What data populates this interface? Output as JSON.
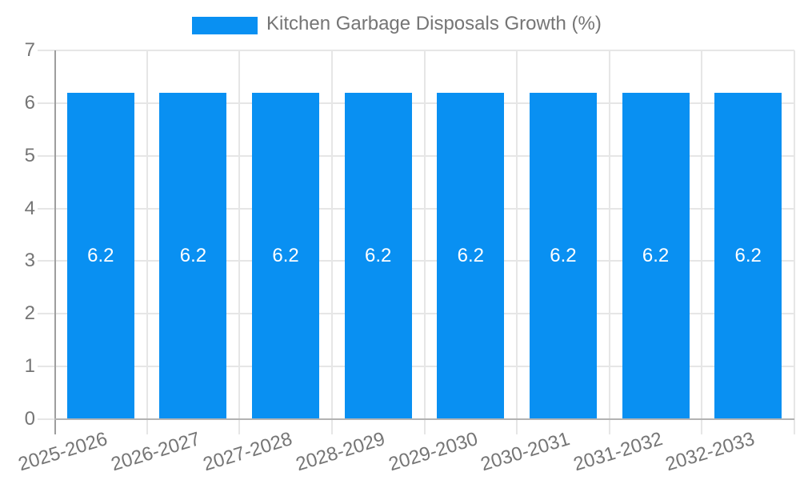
{
  "chart_data": {
    "type": "bar",
    "title": "Kitchen Garbage Disposals Growth (%)",
    "categories": [
      "2025-2026",
      "2026-2027",
      "2027-2028",
      "2028-2029",
      "2029-2030",
      "2030-2031",
      "2031-2032",
      "2032-2033"
    ],
    "values": [
      6.2,
      6.2,
      6.2,
      6.2,
      6.2,
      6.2,
      6.2,
      6.2
    ],
    "bar_labels": [
      "6.2",
      "6.2",
      "6.2",
      "6.2",
      "6.2",
      "6.2",
      "6.2",
      "6.2"
    ],
    "xlabel": "",
    "ylabel": "",
    "ylim": [
      0,
      7
    ],
    "yticks": [
      0,
      1,
      2,
      3,
      4,
      5,
      6,
      7
    ],
    "grid": true,
    "legend_position": "top",
    "colors": {
      "bar": "#0990f2",
      "bar_label": "#ffffff",
      "axis_text": "#757575",
      "gridline": "#e6e6e6",
      "axis_line": "#9e9e9e",
      "baseline": "#b3b3b3",
      "background": "#ffffff"
    }
  }
}
